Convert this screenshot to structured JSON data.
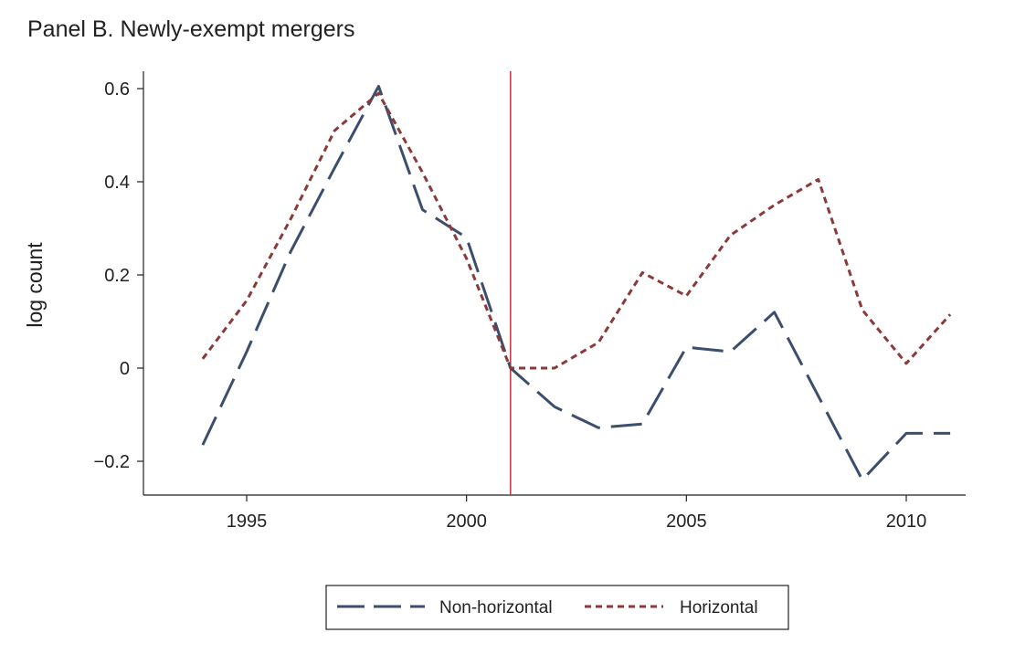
{
  "chart_data": {
    "type": "line",
    "title": "Panel B. Newly-exempt mergers",
    "xlabel": "",
    "ylabel": "log count",
    "xlim": [
      1994,
      2011
    ],
    "ylim": [
      -0.2,
      0.6
    ],
    "x_ticks": [
      1995,
      2000,
      2005,
      2010
    ],
    "y_ticks": [
      {
        "value": -0.2,
        "label": "−0.2"
      },
      {
        "value": 0,
        "label": "0"
      },
      {
        "value": 0.2,
        "label": "0.2"
      },
      {
        "value": 0.4,
        "label": "0.4"
      },
      {
        "value": 0.6,
        "label": "0.6"
      }
    ],
    "reference_line_x": 2001,
    "grid": false,
    "legend_position": "bottom",
    "x": [
      1994,
      1995,
      1996,
      1997,
      1998,
      1999,
      2000,
      2001,
      2002,
      2003,
      2004,
      2005,
      2006,
      2007,
      2008,
      2009,
      2010,
      2011
    ],
    "series": [
      {
        "name": "Non-horizontal",
        "color": "#3b4e6e",
        "dash": "long-dash",
        "values": [
          -0.165,
          0.035,
          0.25,
          0.43,
          0.605,
          0.34,
          0.28,
          0.0,
          -0.083,
          -0.128,
          -0.12,
          0.045,
          0.035,
          0.12,
          -0.06,
          -0.24,
          -0.14,
          -0.14
        ]
      },
      {
        "name": "Horizontal",
        "color": "#8b3a3a",
        "dash": "short-dash",
        "values": [
          0.02,
          0.145,
          0.32,
          0.51,
          0.59,
          0.42,
          0.235,
          0.0,
          0.0,
          0.055,
          0.205,
          0.155,
          0.285,
          0.35,
          0.405,
          0.125,
          0.01,
          0.115
        ]
      }
    ]
  }
}
